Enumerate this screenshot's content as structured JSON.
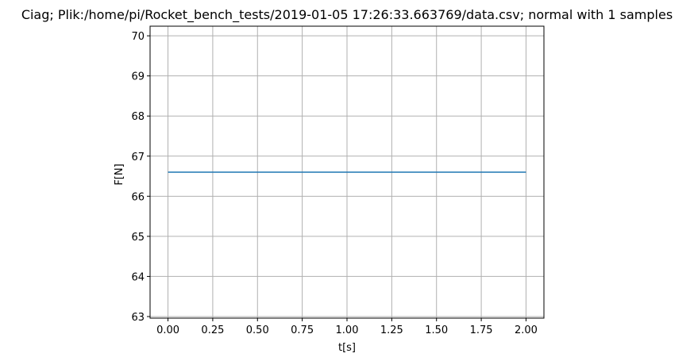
{
  "chart_data": {
    "type": "line",
    "title": "Ciag; Plik:/home/pi/Rocket_bench_tests/2019-01-05 17:26:33.663769/data.csv; normal with 1 samples",
    "xlabel": "t[s]",
    "ylabel": "F[N]",
    "xlim": [
      -0.1,
      2.1
    ],
    "ylim": [
      62.96,
      70.24
    ],
    "x_ticks": [
      0.0,
      0.25,
      0.5,
      0.75,
      1.0,
      1.25,
      1.5,
      1.75,
      2.0
    ],
    "x_tick_labels": [
      "0.00",
      "0.25",
      "0.50",
      "0.75",
      "1.00",
      "1.25",
      "1.50",
      "1.75",
      "2.00"
    ],
    "y_ticks": [
      63,
      64,
      65,
      66,
      67,
      68,
      69,
      70
    ],
    "y_tick_labels": [
      "63",
      "64",
      "65",
      "66",
      "67",
      "68",
      "69",
      "70"
    ],
    "grid": true,
    "series": [
      {
        "color": "#1f77b4",
        "x": [
          0.0,
          2.0
        ],
        "y": [
          66.6,
          66.6
        ]
      }
    ]
  }
}
